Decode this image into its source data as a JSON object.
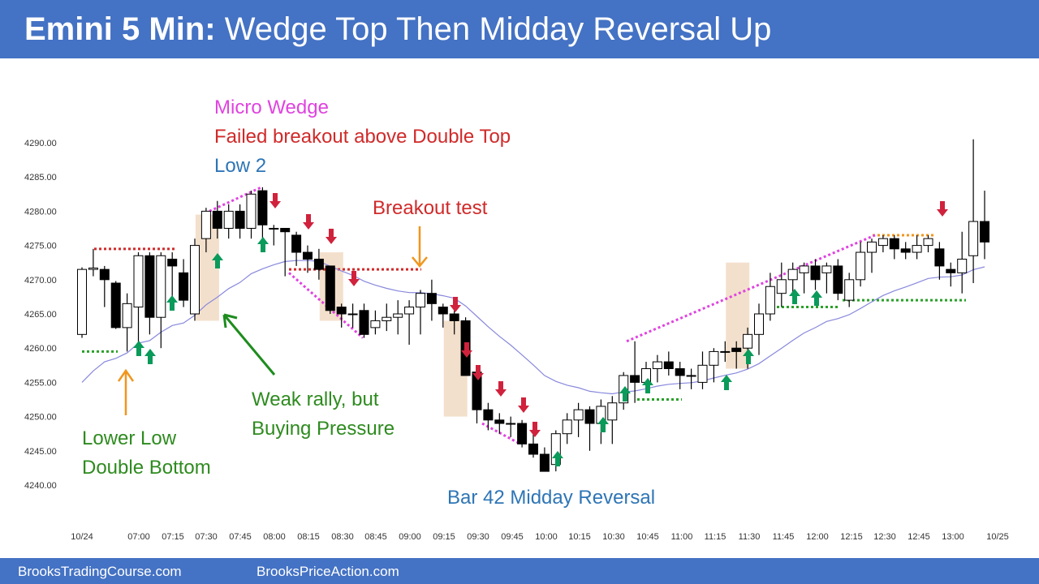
{
  "header": {
    "title_bold": "Emini 5 Min:",
    "title_rest": "Wedge Top Then Midday Reversal Up"
  },
  "footer": {
    "left_link": "BrooksTradingCourse.com",
    "right_link": "BrooksPriceAction.com"
  },
  "colors": {
    "header_bg": "#4472c4",
    "green_text": "#2e8b1f",
    "green_arrow": "#0a9a5a",
    "red_arrow": "#d0223c",
    "red_text": "#d02a2a",
    "blue_text": "#2e75b6",
    "magenta": "#e043e0",
    "orange": "#f0961e",
    "ema": "#8888dd",
    "highlight": "#f3e0cc"
  },
  "annotations": {
    "micro_wedge": "Micro Wedge",
    "failed_breakout": "Failed breakout above Double Top",
    "low2": "Low 2",
    "breakout_test": "Breakout test",
    "weak_rally_1": "Weak rally, but",
    "weak_rally_2": "Buying Pressure",
    "lower_low_1": "Lower Low",
    "lower_low_2": "Double Bottom",
    "bar42": "Bar 42 Midday Reversal"
  },
  "chart_data": {
    "type": "candlestick",
    "title": "Emini 5 Min: Wedge Top Then Midday Reversal Up",
    "ylim": [
      4240,
      4290
    ],
    "y_ticks": [
      "4290.00",
      "4285.00",
      "4280.00",
      "4275.00",
      "4270.00",
      "4265.00",
      "4260.00",
      "4255.00",
      "4250.00",
      "4245.00",
      "4240.00"
    ],
    "x_ticks": [
      "10/24",
      "07:00",
      "07:15",
      "07:30",
      "07:45",
      "08:00",
      "08:15",
      "08:30",
      "08:45",
      "09:00",
      "09:15",
      "09:30",
      "09:45",
      "10:00",
      "10:15",
      "10:30",
      "10:45",
      "11:00",
      "11:15",
      "11:30",
      "11:45",
      "12:00",
      "12:15",
      "12:30",
      "12:45",
      "13:00",
      "10/25"
    ],
    "candles": [
      [
        4262,
        4271.5,
        4261.5,
        4271.8
      ],
      [
        4271.5,
        4271.7,
        4270.5,
        4274.5
      ],
      [
        4271.5,
        4270,
        4266,
        4272
      ],
      [
        4269.5,
        4263,
        4262.8,
        4269.8
      ],
      [
        4263,
        4266.5,
        4259.5,
        4268
      ],
      [
        4266,
        4273.5,
        4260,
        4274
      ],
      [
        4273.5,
        4264.5,
        4262,
        4274
      ],
      [
        4264.5,
        4273.5,
        4260,
        4274
      ],
      [
        4273,
        4272,
        4266,
        4274
      ],
      [
        4271,
        4267,
        4266,
        4273
      ],
      [
        4265,
        4275,
        4264,
        4276
      ],
      [
        4276,
        4280,
        4274,
        4280.5
      ],
      [
        4280,
        4277.5,
        4276,
        4281.5
      ],
      [
        4277.5,
        4280,
        4276,
        4281
      ],
      [
        4280,
        4277.5,
        4276,
        4281
      ],
      [
        4277.5,
        4282.5,
        4276,
        4283
      ],
      [
        4283,
        4278,
        4274,
        4283.5
      ],
      [
        4277.5,
        4277.5,
        4275,
        4278
      ],
      [
        4277.5,
        4277,
        4270.5,
        4277.5
      ],
      [
        4276.5,
        4274,
        4272,
        4277
      ],
      [
        4274,
        4273,
        4271,
        4275
      ],
      [
        4273,
        4271.5,
        4270,
        4274.5
      ],
      [
        4272,
        4265.5,
        4265,
        4272
      ],
      [
        4266,
        4265,
        4263,
        4266.5
      ],
      [
        4265,
        4265,
        4263,
        4266.5
      ],
      [
        4265.5,
        4262,
        4261.5,
        4266.5
      ],
      [
        4263,
        4264,
        4262,
        4265.5
      ],
      [
        4264,
        4264.5,
        4262.5,
        4266.5
      ],
      [
        4264.5,
        4265,
        4262,
        4267
      ],
      [
        4265,
        4266,
        4260.5,
        4267
      ],
      [
        4266,
        4268,
        4262,
        4268.5
      ],
      [
        4268,
        4266.5,
        4264,
        4270
      ],
      [
        4266,
        4265,
        4263,
        4266.5
      ],
      [
        4265,
        4264,
        4262,
        4265.5
      ],
      [
        4264,
        4256,
        4256,
        4264.5
      ],
      [
        4256.5,
        4251,
        4249,
        4257
      ],
      [
        4251,
        4249.5,
        4248,
        4252
      ],
      [
        4249.5,
        4249,
        4247.5,
        4250.5
      ],
      [
        4249,
        4249,
        4247,
        4250
      ],
      [
        4249,
        4246,
        4245.5,
        4249.5
      ],
      [
        4246,
        4244.5,
        4244,
        4248
      ],
      [
        4244.5,
        4242,
        4242,
        4245.5
      ],
      [
        4243,
        4247.5,
        4242,
        4248
      ],
      [
        4247.5,
        4249.5,
        4246,
        4250.5
      ],
      [
        4249.5,
        4251,
        4247,
        4252
      ],
      [
        4251,
        4249,
        4245,
        4251.5
      ],
      [
        4249,
        4251.5,
        4246,
        4252.5
      ],
      [
        4249.5,
        4252,
        4246,
        4253
      ],
      [
        4252,
        4256,
        4251,
        4256.5
      ],
      [
        4256,
        4255,
        4252,
        4261
      ],
      [
        4255,
        4257,
        4254,
        4258
      ],
      [
        4257,
        4258,
        4255,
        4259
      ],
      [
        4258,
        4257,
        4256,
        4259.5
      ],
      [
        4257,
        4256,
        4254,
        4258
      ],
      [
        4256,
        4256,
        4254,
        4257
      ],
      [
        4255,
        4257.5,
        4254,
        4259.5
      ],
      [
        4257.5,
        4259.5,
        4255,
        4260
      ],
      [
        4259.5,
        4259.5,
        4258,
        4261
      ],
      [
        4260,
        4259.5,
        4257,
        4261
      ],
      [
        4260,
        4262,
        4257,
        4263
      ],
      [
        4262,
        4265,
        4259,
        4266.5
      ],
      [
        4265,
        4269,
        4264,
        4271
      ],
      [
        4268,
        4270,
        4266,
        4272.5
      ],
      [
        4270,
        4271.5,
        4267,
        4272.5
      ],
      [
        4271,
        4272,
        4268,
        4272.5
      ],
      [
        4272,
        4270,
        4268.5,
        4273
      ],
      [
        4271,
        4272,
        4268,
        4272.5
      ],
      [
        4272,
        4268,
        4267,
        4273
      ],
      [
        4267,
        4270,
        4266,
        4271
      ],
      [
        4270,
        4274,
        4269,
        4275.5
      ],
      [
        4274,
        4275.5,
        4271,
        4276
      ],
      [
        4275,
        4276,
        4274,
        4276.5
      ],
      [
        4276,
        4274.5,
        4273,
        4276.5
      ],
      [
        4274.5,
        4274,
        4273,
        4275.5
      ],
      [
        4274,
        4275,
        4273,
        4276.5
      ],
      [
        4275,
        4276,
        4274,
        4276.5
      ],
      [
        4274.5,
        4272,
        4270,
        4275.5
      ],
      [
        4271.5,
        4271,
        4269,
        4272.5
      ],
      [
        4271,
        4273,
        4268,
        4277
      ],
      [
        4273.5,
        4278.5,
        4269.5,
        4290.5
      ],
      [
        4278.5,
        4275.5,
        4273,
        4283
      ]
    ]
  }
}
